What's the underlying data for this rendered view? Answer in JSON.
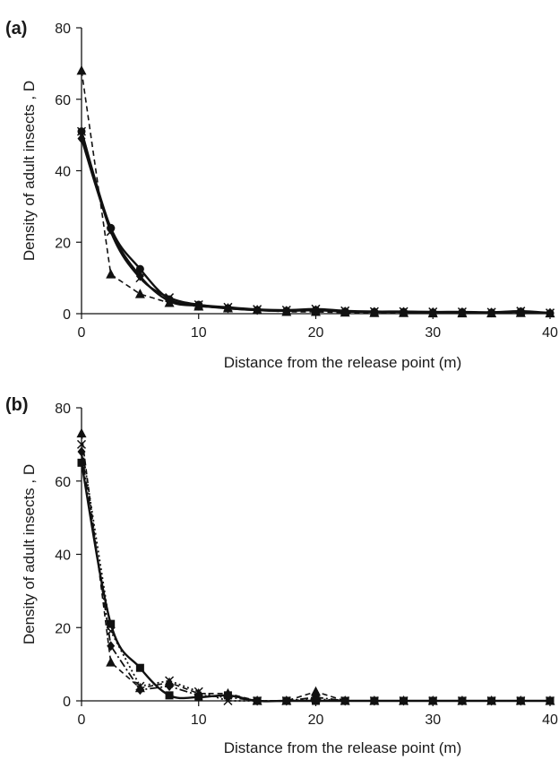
{
  "chart_data": [
    {
      "panel_label": "(a)",
      "type": "line",
      "xlabel": "Distance from the release point  (m)",
      "ylabel": "Density of adult insects , D",
      "xlim": [
        0,
        40
      ],
      "ylim": [
        0,
        80
      ],
      "xticks": [
        0,
        10,
        20,
        30,
        40
      ],
      "yticks": [
        0,
        20,
        40,
        60,
        80
      ],
      "grid": false,
      "x": [
        0,
        2.5,
        5,
        7.5,
        10,
        12.5,
        15,
        17.5,
        20,
        22.5,
        25,
        27.5,
        30,
        32.5,
        35,
        37.5,
        40
      ],
      "series": [
        {
          "marker": "circle",
          "line": "solid",
          "values": [
            51,
            24,
            12.5,
            4,
            2.5,
            1.5,
            1,
            0.8,
            1,
            0.6,
            0.5,
            0.5,
            0.3,
            0.4,
            0.3,
            0.6,
            0.1
          ]
        },
        {
          "marker": "cross",
          "line": "solid",
          "values": [
            51,
            23,
            10,
            4.5,
            2.5,
            1.8,
            1.2,
            1,
            1.3,
            0.8,
            0.6,
            0.6,
            0.5,
            0.5,
            0.4,
            0.7,
            0.2
          ]
        },
        {
          "marker": "diamond",
          "line": "solid",
          "values": [
            49,
            23.5,
            10.5,
            3.5,
            2.2,
            1.5,
            1,
            0.8,
            1,
            0.6,
            0.5,
            0.5,
            0.4,
            0.4,
            0.3,
            0.5,
            0.2
          ]
        },
        {
          "marker": "triangle",
          "line": "dashed",
          "values": [
            68,
            11,
            5.5,
            3,
            2,
            1.5,
            1,
            0.5,
            0.5,
            0.3,
            0.2,
            0.2,
            0.1,
            0.1,
            0.1,
            0.2,
            0.1
          ]
        }
      ]
    },
    {
      "panel_label": "(b)",
      "type": "line",
      "xlabel": "Distance from the release point  (m)",
      "ylabel": "Density of adult insects , D",
      "xlim": [
        0,
        40
      ],
      "ylim": [
        0,
        80
      ],
      "xticks": [
        0,
        10,
        20,
        30,
        40
      ],
      "yticks": [
        0,
        20,
        40,
        60,
        80
      ],
      "grid": false,
      "x": [
        0,
        2.5,
        5,
        7.5,
        10,
        12.5,
        15,
        17.5,
        20,
        22.5,
        25,
        27.5,
        30,
        32.5,
        35,
        37.5,
        40
      ],
      "series": [
        {
          "marker": "square",
          "line": "solid",
          "values": [
            65,
            21,
            9,
            1.5,
            1,
            1.5,
            0,
            0,
            0,
            0,
            0,
            0,
            0,
            0,
            0,
            0,
            0
          ]
        },
        {
          "marker": "triangle",
          "line": "dashed",
          "values": [
            73,
            10.5,
            3.5,
            5,
            2,
            2,
            0,
            0,
            2.5,
            0,
            0,
            0,
            0,
            0,
            0,
            0,
            0
          ]
        },
        {
          "marker": "cross",
          "line": "dotted",
          "values": [
            70,
            19,
            4,
            5.5,
            2.5,
            0,
            0,
            0,
            0.5,
            0,
            0,
            0,
            0,
            0,
            0,
            0,
            0
          ]
        },
        {
          "marker": "diamond",
          "line": "dashdot",
          "values": [
            68,
            15,
            3,
            4,
            1.5,
            1,
            0,
            0,
            1,
            0,
            0,
            0,
            0,
            0,
            0,
            0,
            0
          ]
        }
      ]
    }
  ]
}
